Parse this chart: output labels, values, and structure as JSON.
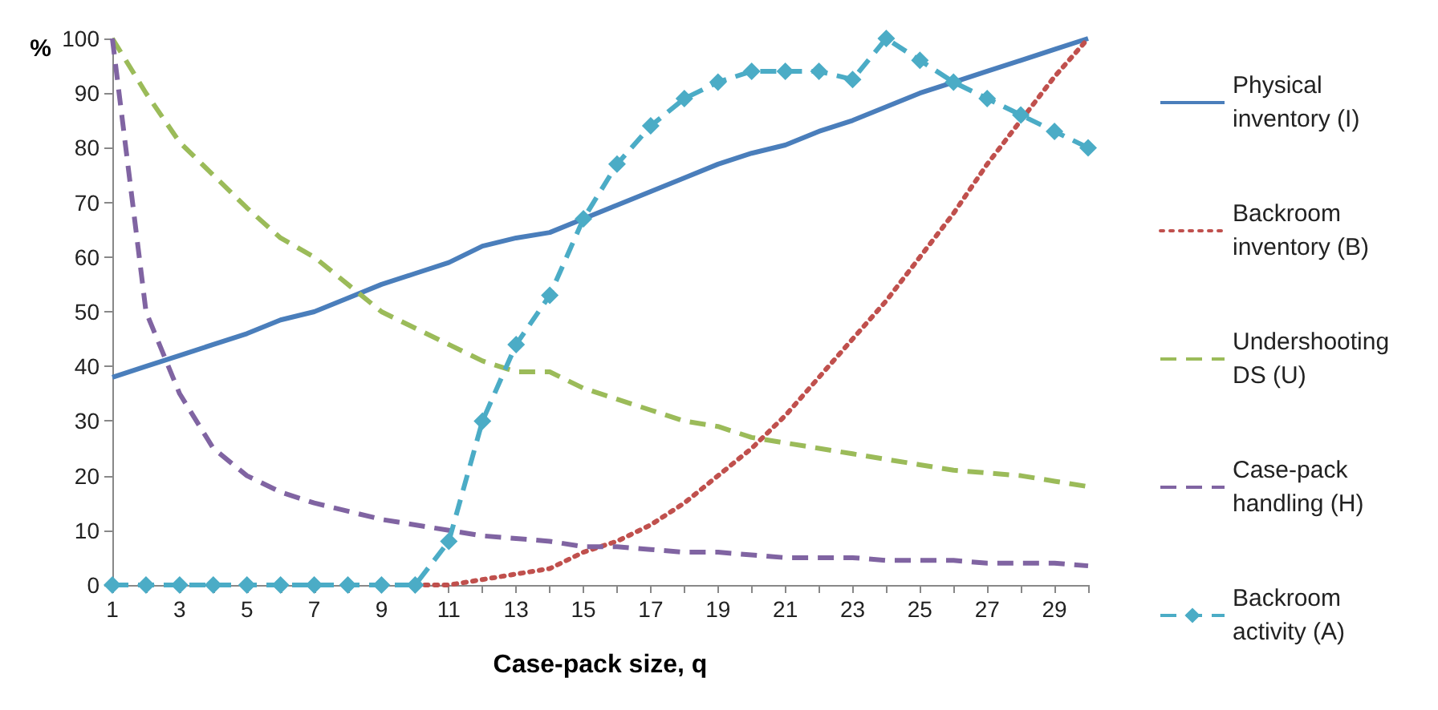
{
  "chart_data": {
    "type": "line",
    "xlabel": "Case-pack size, q",
    "ylabel": "%",
    "x": [
      1,
      2,
      3,
      4,
      5,
      6,
      7,
      8,
      9,
      10,
      11,
      12,
      13,
      14,
      15,
      16,
      17,
      18,
      19,
      20,
      21,
      22,
      23,
      24,
      25,
      26,
      27,
      28,
      29,
      30
    ],
    "xlim": [
      1,
      30
    ],
    "xticks": [
      1,
      {
        "value": 2,
        "label": null
      },
      3,
      {
        "value": 4,
        "label": null
      },
      5,
      {
        "value": 6,
        "label": null
      },
      7,
      {
        "value": 8,
        "label": null
      },
      9,
      {
        "value": 10,
        "label": null
      },
      11,
      {
        "value": 12,
        "label": null
      },
      13,
      {
        "value": 14,
        "label": null
      },
      15,
      {
        "value": 16,
        "label": null
      },
      17,
      {
        "value": 18,
        "label": null
      },
      19,
      {
        "value": 20,
        "label": null
      },
      21,
      {
        "value": 22,
        "label": null
      },
      23,
      {
        "value": 24,
        "label": null
      },
      25,
      {
        "value": 26,
        "label": null
      },
      27,
      {
        "value": 28,
        "label": null
      },
      29,
      {
        "value": 30,
        "label": null
      }
    ],
    "ylim": [
      0,
      100
    ],
    "yticks": [
      0,
      10,
      20,
      30,
      40,
      50,
      60,
      70,
      80,
      90,
      100
    ],
    "grid": false,
    "legend": "right",
    "series": [
      {
        "name": "Physical inventory (I)",
        "color": "#4a7ebb",
        "line_style": "solid",
        "marker": "none",
        "values": [
          38,
          40,
          42,
          44,
          46,
          48.5,
          50,
          52.5,
          55,
          57,
          59,
          62,
          63.5,
          64.5,
          67,
          69.5,
          72,
          74.5,
          77,
          79,
          80.5,
          83,
          85,
          87.5,
          90,
          92,
          94,
          96,
          98,
          100
        ]
      },
      {
        "name": "Backroom inventory (B)",
        "color": "#c0504d",
        "line_style": "dotted",
        "marker": "none",
        "values": [
          null,
          null,
          null,
          null,
          null,
          null,
          null,
          null,
          null,
          0,
          0,
          1,
          2,
          3,
          6,
          8,
          11,
          15,
          20,
          25,
          31,
          38,
          45,
          52,
          60,
          68,
          77,
          85,
          93,
          100
        ]
      },
      {
        "name": "Undershooting DS (U)",
        "color": "#9bbb59",
        "line_style": "dashed",
        "marker": "none",
        "values": [
          100,
          90,
          81,
          75,
          69,
          63.5,
          60,
          55,
          50,
          47,
          44,
          41,
          39,
          39,
          36,
          34,
          32,
          30,
          29,
          27,
          26,
          25,
          24,
          23,
          22,
          21,
          20.5,
          20,
          19,
          18
        ]
      },
      {
        "name": "Case-pack handling (H)",
        "color": "#8064a2",
        "line_style": "dashed",
        "marker": "none",
        "values": [
          100,
          50,
          35,
          25,
          20,
          17,
          15,
          13.5,
          12,
          11,
          10,
          9,
          8.5,
          8,
          7,
          7,
          6.5,
          6,
          6,
          5.5,
          5,
          5,
          5,
          4.5,
          4.5,
          4.5,
          4,
          4,
          4,
          3.5
        ]
      },
      {
        "name": "Backroom activity (A)",
        "color": "#4bacc6",
        "line_style": "dashed",
        "marker": "diamond",
        "values": [
          0,
          0,
          0,
          0,
          0,
          0,
          0,
          0,
          0,
          0,
          8,
          30,
          44,
          53,
          67,
          77,
          84,
          89,
          92,
          94,
          94,
          94,
          92.5,
          100,
          96,
          92,
          89,
          86,
          83,
          80
        ]
      }
    ]
  }
}
